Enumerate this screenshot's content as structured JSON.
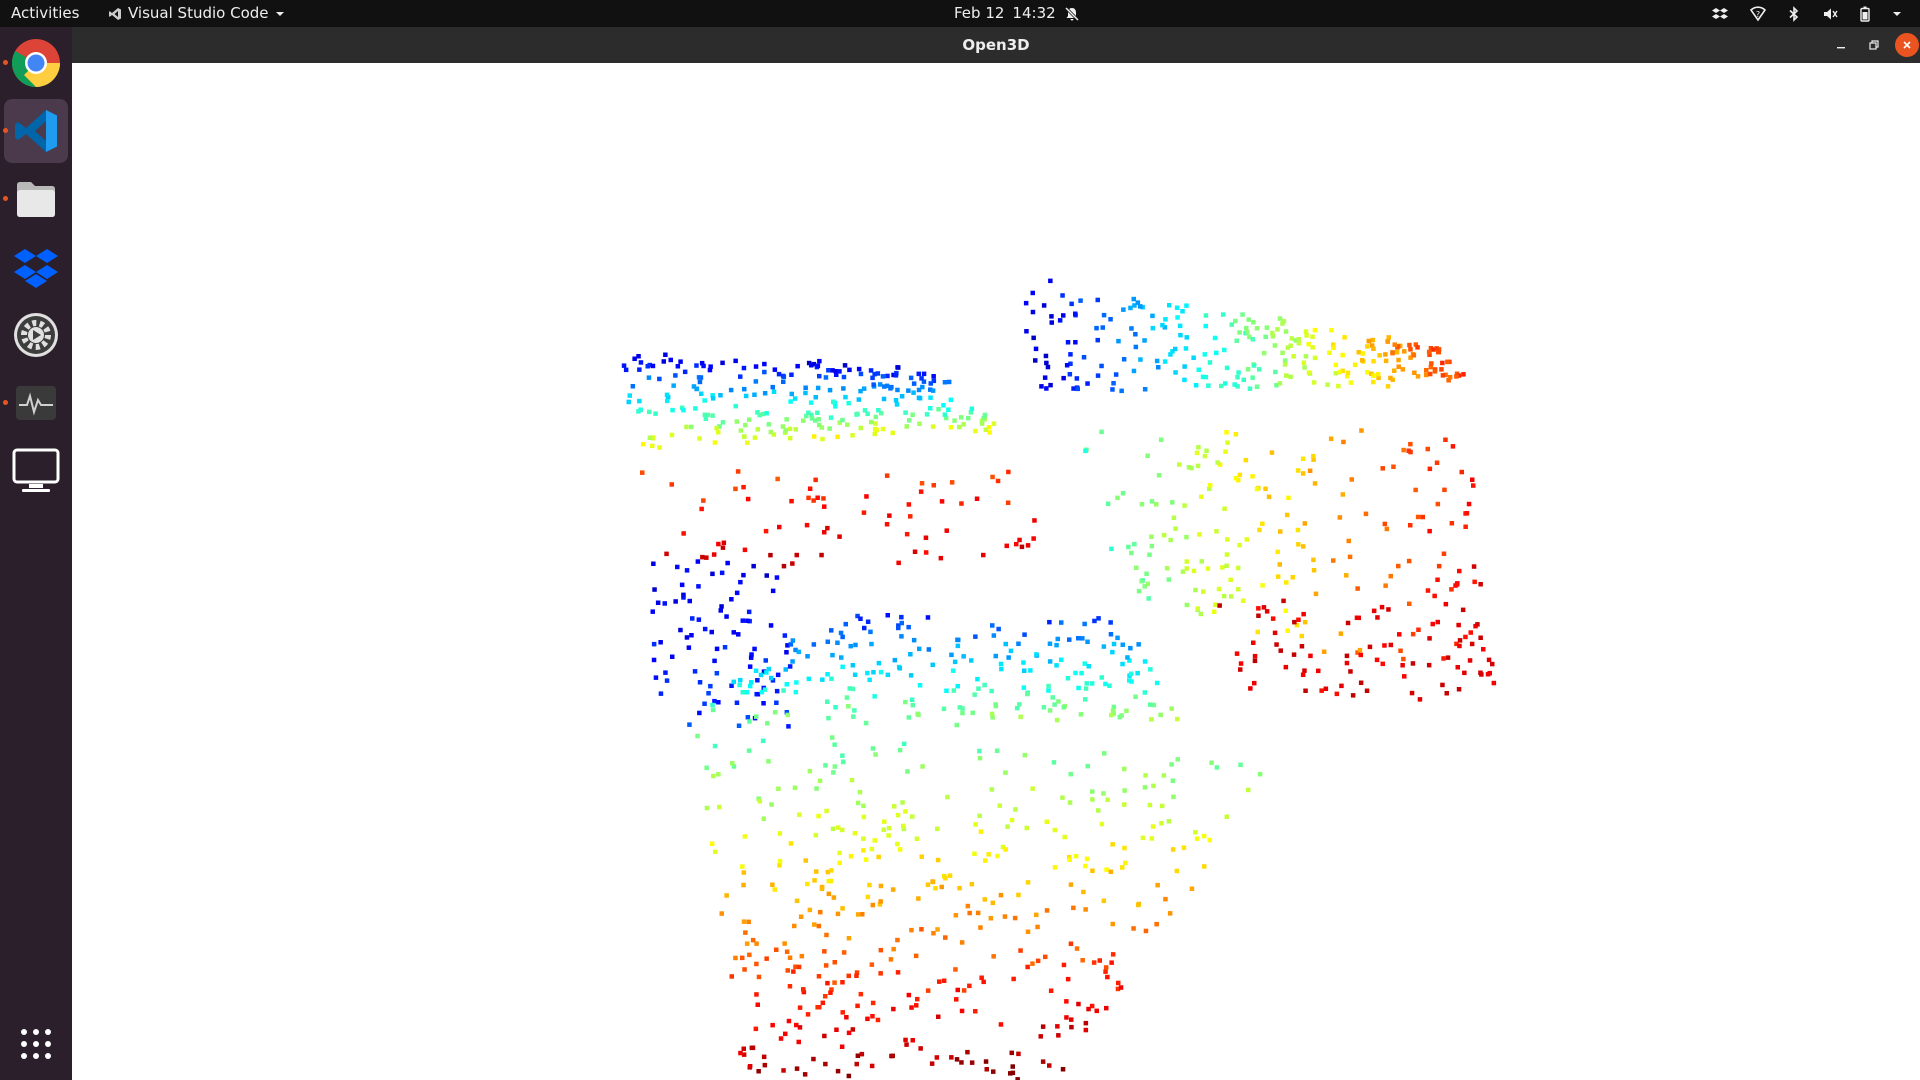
{
  "topbar": {
    "activities_label": "Activities",
    "app_name": "Visual Studio Code",
    "date": "Feb 12",
    "time": "14:32"
  },
  "dock": {
    "items": [
      {
        "name": "chrome",
        "running": true
      },
      {
        "name": "vscode",
        "running": true,
        "active": true
      },
      {
        "name": "files",
        "running": true
      },
      {
        "name": "dropbox",
        "running": false
      },
      {
        "name": "settings",
        "running": false
      },
      {
        "name": "system-monitor",
        "running": true
      },
      {
        "name": "remote-desktop",
        "running": false
      }
    ]
  },
  "window": {
    "title": "Open3D"
  },
  "pointcloud": {
    "colormap": [
      "#00007f",
      "#0000ff",
      "#0080ff",
      "#00ffff",
      "#7fff7f",
      "#ffff00",
      "#ff8000",
      "#ff0000",
      "#7f0000"
    ],
    "background": "#ffffff"
  }
}
